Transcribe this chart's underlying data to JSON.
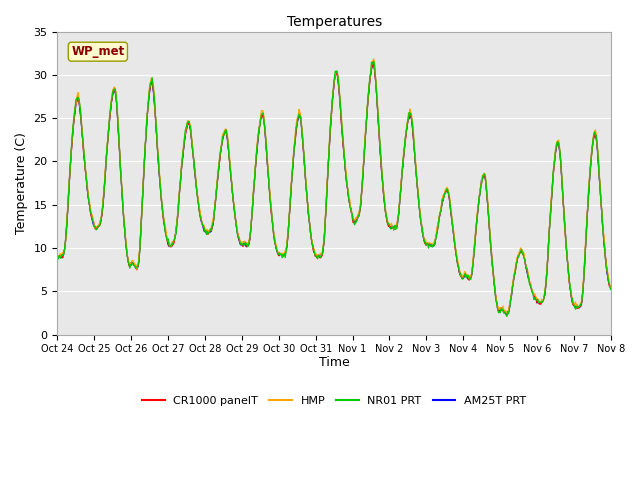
{
  "title": "Temperatures",
  "ylabel": "Temperature (C)",
  "xlabel": "Time",
  "annotation": "WP_met",
  "annotation_color": "#8B0000",
  "annotation_bg": "#FFFACD",
  "ylim": [
    0,
    35
  ],
  "yticks": [
    0,
    5,
    10,
    15,
    20,
    25,
    30,
    35
  ],
  "x_labels": [
    "Oct 24",
    "Oct 25",
    "Oct 26",
    "Oct 27",
    "Oct 28",
    "Oct 29",
    "Oct 30",
    "Oct 31",
    "Nov 1",
    "Nov 2",
    "Nov 3",
    "Nov 4",
    "Nov 5",
    "Nov 6",
    "Nov 7",
    "Nov 8"
  ],
  "line_colors": {
    "CR1000 panelT": "#FF0000",
    "HMP": "#FFA500",
    "NR01 PRT": "#00CC00",
    "AM25T PRT": "#0000FF"
  },
  "bg_color": "#E8E8E8",
  "daily_peaks": [
    28,
    29,
    30,
    25,
    24,
    26,
    26,
    31,
    32,
    26,
    17,
    19,
    10,
    23,
    24,
    6
  ],
  "daily_troughs": [
    9,
    13,
    7,
    11,
    12,
    10,
    9,
    9,
    14,
    12,
    10,
    6,
    2,
    4,
    3,
    5
  ],
  "peak_hour": 14,
  "trough_hour": 5,
  "hours_per_day": 24,
  "n_days": 15,
  "samples_per_hour": 2
}
